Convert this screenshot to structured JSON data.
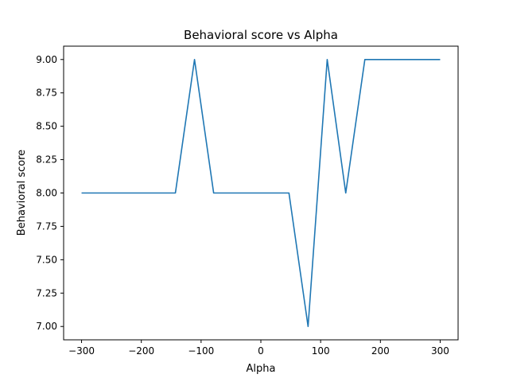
{
  "chart_data": {
    "type": "line",
    "title": "Behavioral score vs Alpha",
    "xlabel": "Alpha",
    "ylabel": "Behavioral score",
    "xlim": [
      -330,
      330
    ],
    "ylim": [
      6.9,
      9.1
    ],
    "xticks": [
      -300,
      -200,
      -100,
      0,
      100,
      200,
      300
    ],
    "xtick_labels": [
      "−300",
      "−200",
      "−100",
      "0",
      "100",
      "200",
      "300"
    ],
    "yticks": [
      7.0,
      7.25,
      7.5,
      7.75,
      8.0,
      8.25,
      8.5,
      8.75,
      9.0
    ],
    "ytick_labels": [
      "7.00",
      "7.25",
      "7.50",
      "7.75",
      "8.00",
      "8.25",
      "8.50",
      "8.75",
      "9.00"
    ],
    "grid": false,
    "series": [
      {
        "color": "#1f77b4",
        "x": [
          -300,
          -143,
          -111,
          -79,
          47,
          79,
          111,
          142,
          174,
          300
        ],
        "y": [
          8,
          8,
          9,
          8,
          8,
          7,
          9,
          8,
          9,
          9
        ]
      }
    ]
  }
}
